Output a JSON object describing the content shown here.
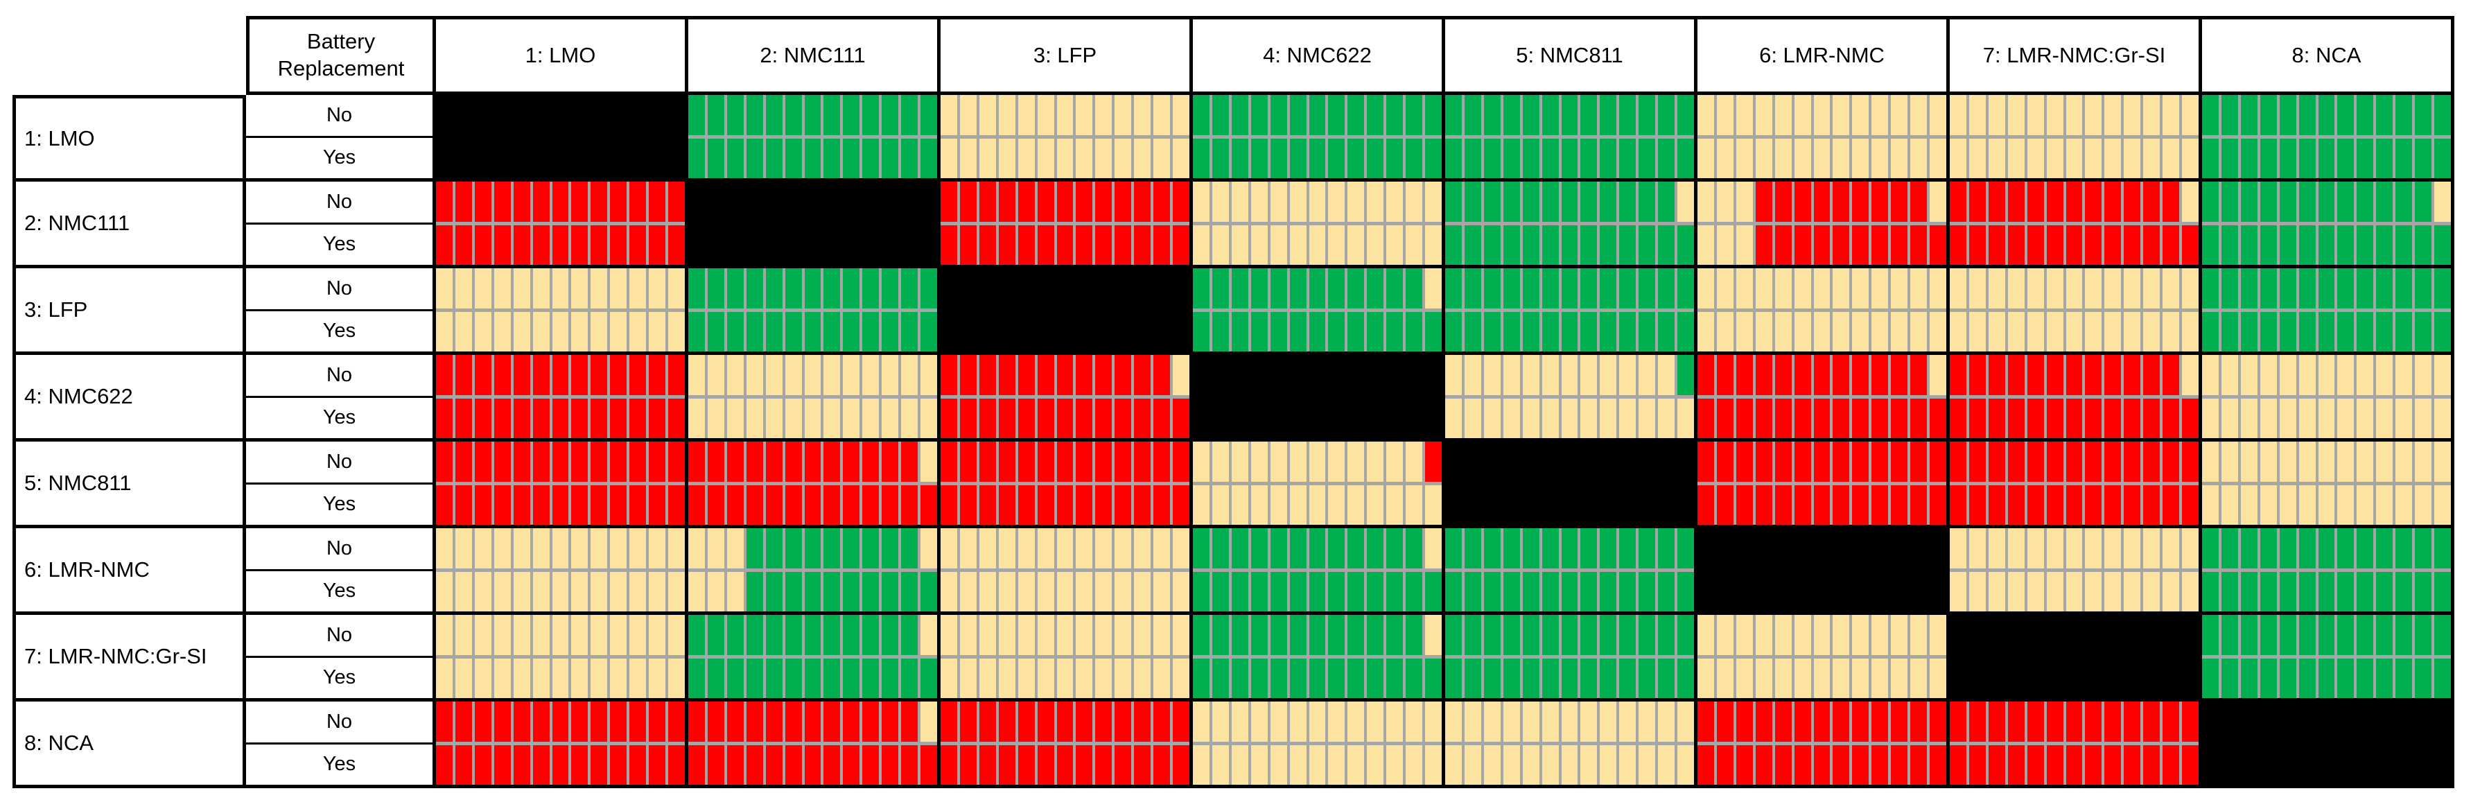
{
  "chart_data": {
    "type": "heatmap",
    "corner_header": "Battery\nReplacement",
    "columns": [
      "1: LMO",
      "2: NMC111",
      "3: LFP",
      "4: NMC622",
      "5: NMC811",
      "6: LMR-NMC",
      "7: LMR-NMC:Gr-SI",
      "8: NCA"
    ],
    "sub_rows": [
      "No",
      "Yes"
    ],
    "bars_per_cell": 13,
    "colors": {
      "g": "#00B050",
      "r": "#FF0000",
      "t": "#FCE4A0"
    },
    "diagonal_color": "#000000",
    "separator_color": "#A6A6A6",
    "rows": [
      {
        "label": "1: LMO",
        "no": [
          "black",
          "g13",
          "t13",
          "g13",
          "g13",
          "t13",
          "t13",
          "g13"
        ],
        "yes": [
          "black",
          "g13",
          "t13",
          "g13",
          "g13",
          "t13",
          "t13",
          "g13"
        ]
      },
      {
        "label": "2: NMC111",
        "no": [
          "r13",
          "black",
          "r13",
          "t13",
          "g12,t1",
          "t3,r9,t1",
          "r12,t1",
          "g12,t1"
        ],
        "yes": [
          "r13",
          "black",
          "r13",
          "t13",
          "g13",
          "t3,r10",
          "r13",
          "g13"
        ]
      },
      {
        "label": "3: LFP",
        "no": [
          "t13",
          "g13",
          "black",
          "g12,t1",
          "g13",
          "t13",
          "t13",
          "g13"
        ],
        "yes": [
          "t13",
          "g13",
          "black",
          "g13",
          "g13",
          "t13",
          "t13",
          "g13"
        ]
      },
      {
        "label": "4: NMC622",
        "no": [
          "r13",
          "t13",
          "r12,t1",
          "black",
          "t12,g1",
          "r12,t1",
          "r12,t1",
          "t13"
        ],
        "yes": [
          "r13",
          "t13",
          "r13",
          "black",
          "t13",
          "r13",
          "r13",
          "t13"
        ]
      },
      {
        "label": "5: NMC811",
        "no": [
          "r13",
          "r12,t1",
          "r13",
          "t12,r1",
          "black",
          "r13",
          "r13",
          "t13"
        ],
        "yes": [
          "r13",
          "r13",
          "r13",
          "t13",
          "black",
          "r13",
          "r13",
          "t13"
        ]
      },
      {
        "label": "6: LMR-NMC",
        "no": [
          "t13",
          "t3,g9,t1",
          "t13",
          "g12,t1",
          "g13",
          "black",
          "t13",
          "g13"
        ],
        "yes": [
          "t13",
          "t3,g10",
          "t13",
          "g13",
          "g13",
          "black",
          "t13",
          "g13"
        ]
      },
      {
        "label": "7: LMR-NMC:Gr-SI",
        "no": [
          "t13",
          "g12,t1",
          "t13",
          "g12,t1",
          "g13",
          "t13",
          "black",
          "g13"
        ],
        "yes": [
          "t13",
          "g13",
          "t13",
          "g13",
          "g13",
          "t13",
          "black",
          "g13"
        ]
      },
      {
        "label": "8: NCA",
        "no": [
          "r13",
          "r12,t1",
          "r13",
          "t13",
          "t13",
          "r13",
          "r13",
          "black"
        ],
        "yes": [
          "r13",
          "r13",
          "r13",
          "t13",
          "t13",
          "r13",
          "r13",
          "black"
        ]
      }
    ]
  }
}
